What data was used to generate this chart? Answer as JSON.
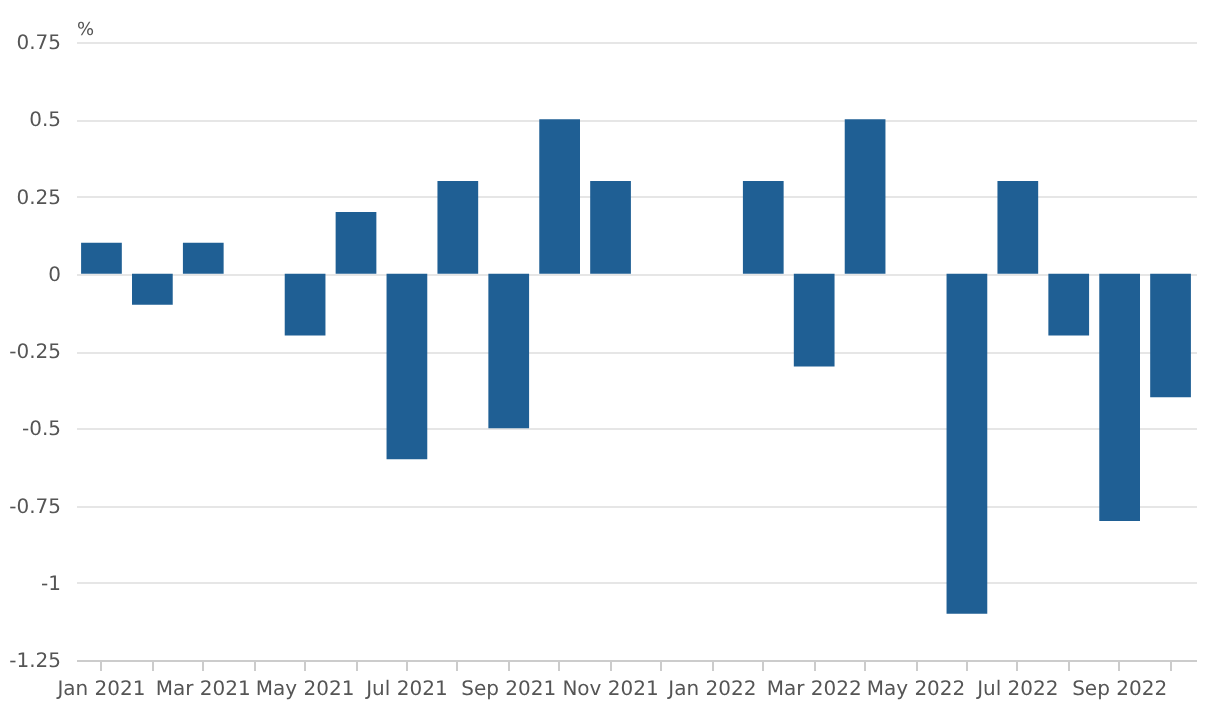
{
  "chart_data": {
    "type": "bar",
    "ylabel": "%",
    "categories": [
      "Jan 2021",
      null,
      "Mar 2021",
      null,
      "May 2021",
      null,
      "Jul 2021",
      null,
      "Sep 2021",
      null,
      "Nov 2021",
      null,
      "Jan 2022",
      null,
      "Mar 2022",
      null,
      "May 2022",
      null,
      "Jul 2022",
      null,
      "Sep 2022",
      null
    ],
    "values": [
      0.1,
      -0.1,
      0.1,
      0,
      -0.2,
      0.2,
      -0.6,
      0.3,
      -0.5,
      0.5,
      0.3,
      0,
      0,
      0.3,
      -0.3,
      0.5,
      0,
      -1.1,
      0.3,
      -0.2,
      -0.8,
      -0.4
    ],
    "color": "#1f5f94",
    "ylim": [
      -1.25,
      0.75
    ],
    "yticks": [
      -1.25,
      -1,
      -0.75,
      -0.5,
      -0.25,
      0,
      0.25,
      0.5,
      0.75
    ],
    "grid": "y"
  }
}
